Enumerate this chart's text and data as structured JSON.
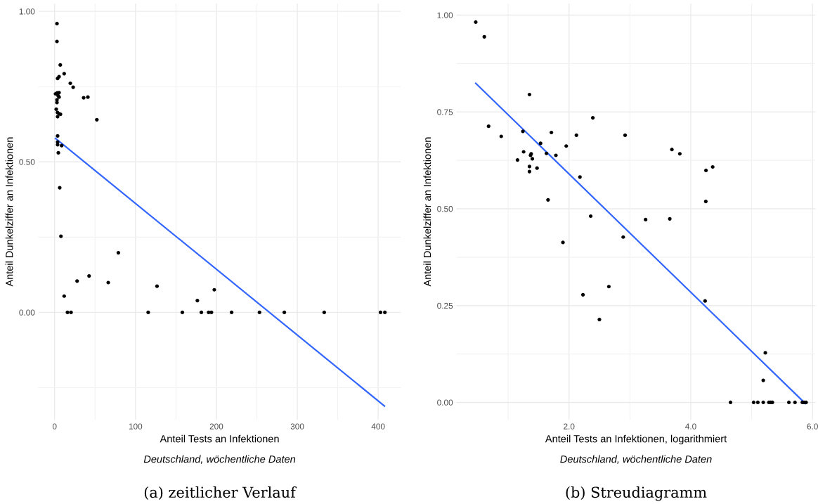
{
  "chart_data": [
    {
      "type": "scatter",
      "xlabel": "Anteil Tests an Infektionen",
      "ylabel": "Anteil Dunkelziffer an Infektionen",
      "annotations": [
        "Deutschland, wöchentliche Daten",
        "(a) zeitlicher Verlauf"
      ],
      "xlim": [
        -20,
        428
      ],
      "ylim": [
        -0.357,
        1.026
      ],
      "xticks": [
        0,
        100,
        200,
        300,
        400
      ],
      "yticks": [
        {
          "value": 0,
          "label": "0.00"
        },
        {
          "value": 0.5,
          "label": "0.50"
        },
        {
          "value": 1,
          "label": "1.00"
        }
      ],
      "grid": true,
      "series": [
        {
          "color": "#000000",
          "marker": "circle",
          "x": [
            2.9,
            2.9,
            7,
            11.8,
            3.7,
            5.5,
            19.4,
            22.9,
            35.9,
            41.1,
            1.1,
            3.2,
            5.5,
            4.3,
            5.5,
            2.9,
            2.9,
            2,
            3.5,
            5.5,
            7.2,
            3.7,
            52.2,
            3.7,
            3.7,
            3.7,
            8.7,
            4.6,
            6.3,
            7.8,
            78.8,
            42.6,
            27.8,
            66.3,
            126.6,
            11.8,
            176.5,
            15.9,
            20.3,
            115.7,
            157.9,
            181.4,
            190.4,
            193.9,
            197.4,
            218.8,
            253.3,
            284,
            333.3,
            402.9,
            408.3
          ],
          "values": [
            0.959,
            0.9,
            0.822,
            0.793,
            0.777,
            0.783,
            0.761,
            0.748,
            0.713,
            0.715,
            0.726,
            0.729,
            0.73,
            0.72,
            0.715,
            0.706,
            0.697,
            0.675,
            0.664,
            0.66,
            0.658,
            0.65,
            0.64,
            0.586,
            0.566,
            0.557,
            0.554,
            0.53,
            0.414,
            0.253,
            0.198,
            0.121,
            0.104,
            0.099,
            0.087,
            0.054,
            0.039,
            0,
            0,
            0,
            0,
            0,
            0,
            0,
            0.075,
            0,
            0,
            0,
            0,
            0,
            0
          ]
        },
        {
          "type": "line",
          "color": "#3366ff",
          "x": [
            1.1,
            407.8
          ],
          "values": [
            0.578,
            -0.311
          ]
        }
      ]
    },
    {
      "type": "scatter",
      "xlabel": "Anteil Tests an Infektionen, logarithmiert",
      "ylabel": "Anteil Dunkelziffer an Infektionen",
      "annotations": [
        "Deutschland, wöchentliche Daten",
        "(b) Streudiagramm"
      ],
      "xlim": [
        0.15,
        6.05
      ],
      "ylim": [
        -0.045,
        1.03
      ],
      "xticks": [
        {
          "value": 2,
          "label": "2.0"
        },
        {
          "value": 4,
          "label": "4.0"
        },
        {
          "value": 6,
          "label": "6.0"
        }
      ],
      "yticks": [
        {
          "value": 0,
          "label": "0.00"
        },
        {
          "value": 0.25,
          "label": "0.25"
        },
        {
          "value": 0.5,
          "label": "0.50"
        },
        {
          "value": 0.75,
          "label": "0.75"
        },
        {
          "value": 1,
          "label": "1.00"
        }
      ],
      "grid": true,
      "series": [
        {
          "color": "#000000",
          "marker": "circle",
          "x": [
            0.467,
            0.608,
            0.678,
            0.886,
            1.35,
            1.242,
            1.254,
            1.153,
            1.367,
            1.378,
            1.397,
            1.35,
            1.35,
            1.474,
            1.532,
            1.629,
            1.71,
            1.784,
            1.954,
            2.121,
            2.391,
            2.179,
            1.655,
            2.356,
            2.921,
            1.9,
            2.89,
            2.229,
            2.654,
            2.499,
            3.258,
            3.655,
            4.247,
            4.235,
            3.69,
            3.82,
            4.25,
            4.36,
            4.653,
            5.033,
            5.102,
            5.191,
            5.283,
            5.314,
            5.341,
            5.612,
            5.712,
            5.833,
            5.86,
            5.895,
            5.225,
            5.191
          ],
          "values": [
            0.982,
            0.944,
            0.713,
            0.687,
            0.795,
            0.7,
            0.647,
            0.626,
            0.638,
            0.642,
            0.629,
            0.609,
            0.596,
            0.605,
            0.669,
            0.643,
            0.697,
            0.638,
            0.662,
            0.69,
            0.735,
            0.582,
            0.523,
            0.481,
            0.69,
            0.413,
            0.427,
            0.278,
            0.299,
            0.214,
            0.472,
            0.474,
            0.519,
            0.262,
            0.653,
            0.642,
            0.599,
            0.608,
            0,
            0,
            0,
            0,
            0,
            0,
            0,
            0,
            0,
            0,
            0,
            0,
            0.128,
            0.057
          ]
        },
        {
          "type": "line",
          "color": "#3366ff",
          "x": [
            0.467,
            5.883
          ],
          "values": [
            0.824,
            -0.003
          ]
        }
      ]
    }
  ]
}
